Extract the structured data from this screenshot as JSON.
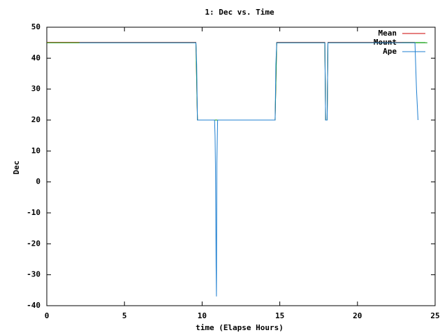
{
  "chart_data": {
    "type": "line",
    "title": "1: Dec vs. Time",
    "x_label": "time (Elapse Hours)",
    "y_label": "Dec",
    "xlim": [
      0,
      25
    ],
    "xticks": [
      0,
      5,
      10,
      15,
      20,
      25
    ],
    "ylim": [
      -40,
      50
    ],
    "yticks": [
      -40,
      -30,
      -20,
      -10,
      0,
      10,
      20,
      30,
      40,
      50
    ],
    "grid": false,
    "legend": "upper right",
    "series": [
      {
        "name": "Mean",
        "color": "#cc0000",
        "x": [
          0,
          2.1,
          9.6,
          9.7,
          14.7,
          14.8,
          17.9,
          17.95,
          18.05,
          18.1,
          23.7
        ],
        "values": [
          45.1,
          45.1,
          45.1,
          20,
          20,
          45.1,
          45.1,
          20,
          20,
          45.1,
          45.1
        ]
      },
      {
        "name": "Mount",
        "color": "#009900",
        "x": [
          0,
          9.6,
          9.7,
          14.7,
          14.8,
          17.9,
          17.95,
          18.05,
          18.1,
          24.5
        ],
        "values": [
          45,
          45,
          20,
          20,
          45,
          45,
          20,
          20,
          45,
          45
        ]
      },
      {
        "name": "Ape",
        "color": "#1f7fd0",
        "x": [
          2.1,
          9.6,
          9.65,
          9.7,
          10.8,
          10.83,
          10.86,
          10.88,
          10.9,
          10.92,
          10.95,
          11.0,
          14.7,
          14.75,
          14.8,
          17.9,
          17.95,
          18.05,
          18.1,
          23.7,
          23.8,
          23.9
        ],
        "values": [
          45,
          45,
          38,
          20,
          20,
          15,
          5,
          -10,
          -27,
          -37,
          6,
          20,
          20,
          38,
          45,
          45,
          20,
          20,
          45,
          45,
          30,
          20
        ]
      }
    ]
  }
}
